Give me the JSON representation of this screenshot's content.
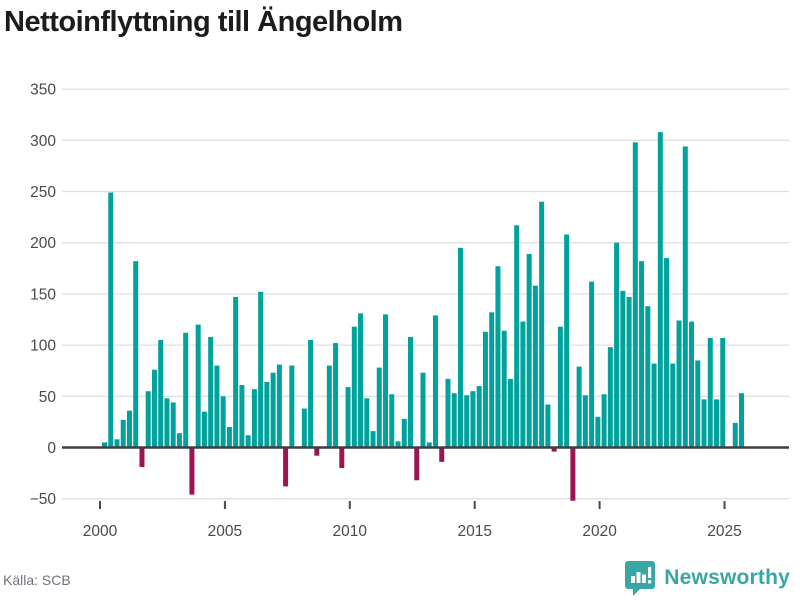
{
  "title": "Nettoinflyttning till Ängelholm",
  "source": "Källa: SCB",
  "branding": {
    "name": "Newsworthy"
  },
  "colors": {
    "positive_bar": "#00a29b",
    "negative_bar": "#9d1452",
    "gridline": "#e0e0e0",
    "zero_line": "#3b4045",
    "axis_text": "#4a4a4a",
    "title_text": "#1c1c1c",
    "source_text": "#6e737b",
    "brand": "#38a7a3"
  },
  "chart_data": {
    "type": "bar",
    "title": "Nettoinflyttning till Ängelholm",
    "xlabel": "",
    "ylabel": "",
    "ylim": [
      -50,
      350
    ],
    "yticks": [
      -50,
      0,
      50,
      100,
      150,
      200,
      250,
      300,
      350
    ],
    "xticks": [
      2000,
      2005,
      2010,
      2015,
      2020,
      2025
    ],
    "grid": true,
    "legend": "none",
    "x": [
      "2000Q1",
      "2000Q2",
      "2000Q3",
      "2000Q4",
      "2001Q1",
      "2001Q2",
      "2001Q3",
      "2001Q4",
      "2002Q1",
      "2002Q2",
      "2002Q3",
      "2002Q4",
      "2003Q1",
      "2003Q2",
      "2003Q3",
      "2003Q4",
      "2004Q1",
      "2004Q2",
      "2004Q3",
      "2004Q4",
      "2005Q1",
      "2005Q2",
      "2005Q3",
      "2005Q4",
      "2006Q1",
      "2006Q2",
      "2006Q3",
      "2006Q4",
      "2007Q1",
      "2007Q2",
      "2007Q3",
      "2007Q4",
      "2008Q1",
      "2008Q2",
      "2008Q3",
      "2008Q4",
      "2009Q1",
      "2009Q2",
      "2009Q3",
      "2009Q4",
      "2010Q1",
      "2010Q2",
      "2010Q3",
      "2010Q4",
      "2011Q1",
      "2011Q2",
      "2011Q3",
      "2011Q4",
      "2012Q1",
      "2012Q2",
      "2012Q3",
      "2012Q4",
      "2013Q1",
      "2013Q2",
      "2013Q3",
      "2013Q4",
      "2014Q1",
      "2014Q2",
      "2014Q3",
      "2014Q4",
      "2015Q1",
      "2015Q2",
      "2015Q3",
      "2015Q4",
      "2016Q1",
      "2016Q2",
      "2016Q3",
      "2016Q4",
      "2017Q1",
      "2017Q2",
      "2017Q3",
      "2017Q4",
      "2018Q1",
      "2018Q2",
      "2018Q3",
      "2018Q4",
      "2019Q1",
      "2019Q2",
      "2019Q3",
      "2019Q4",
      "2020Q1",
      "2020Q2",
      "2020Q3",
      "2020Q4",
      "2021Q1",
      "2021Q2",
      "2021Q3",
      "2021Q4",
      "2022Q1",
      "2022Q2",
      "2022Q3",
      "2022Q4",
      "2023Q1",
      "2023Q2",
      "2023Q3",
      "2023Q4",
      "2024Q1",
      "2024Q2",
      "2024Q3",
      "2024Q4",
      "2025Q1",
      "2025Q2",
      "2025Q3"
    ],
    "values": [
      5,
      249,
      8,
      27,
      36,
      182,
      -19,
      55,
      76,
      105,
      48,
      44,
      14,
      112,
      -46,
      120,
      35,
      108,
      80,
      50,
      20,
      147,
      61,
      12,
      57,
      152,
      64,
      73,
      81,
      -38,
      80,
      0,
      38,
      105,
      -8,
      0,
      80,
      102,
      -20,
      59,
      118,
      131,
      48,
      16,
      78,
      130,
      52,
      6,
      28,
      108,
      -32,
      73,
      5,
      129,
      -14,
      67,
      53,
      195,
      51,
      55,
      60,
      113,
      132,
      177,
      114,
      67,
      217,
      123,
      189,
      158,
      240,
      42,
      -4,
      118,
      208,
      -52,
      79,
      51,
      162,
      30,
      52,
      98,
      200,
      153,
      147,
      298,
      182,
      138,
      82,
      308,
      185,
      82,
      124,
      294,
      123,
      85,
      47,
      107,
      47,
      107,
      0,
      24,
      53
    ]
  }
}
